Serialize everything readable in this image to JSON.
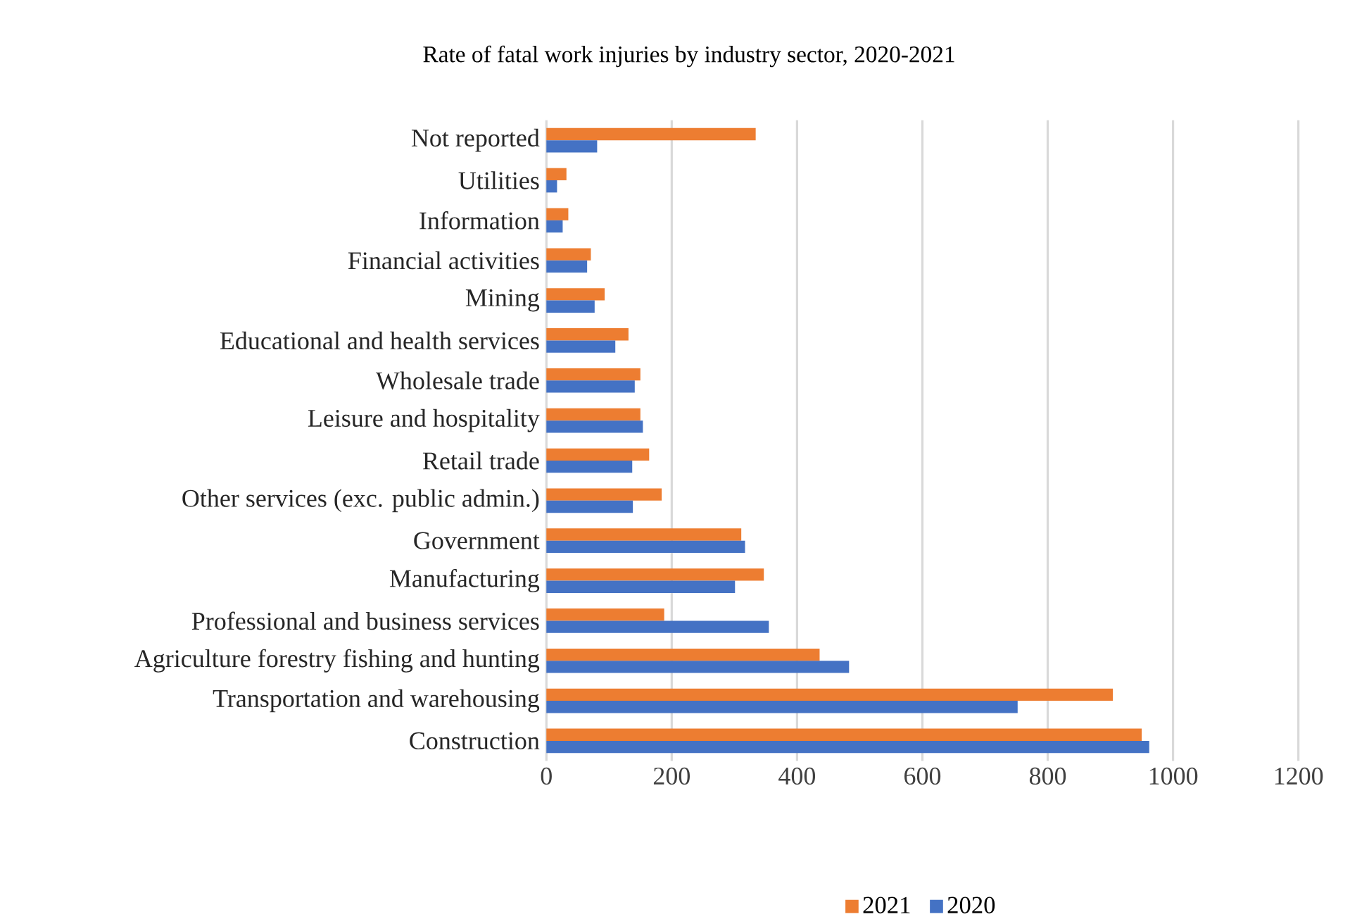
{
  "chart_data": {
    "type": "bar",
    "orientation": "horizontal",
    "title": "Rate of  fatal work injuries by industry sector, 2020-2021",
    "categories": [
      "Not reported",
      "Utilities",
      "Information",
      "Financial activities",
      "Mining",
      "Educational and health services",
      "Wholesale trade",
      "Leisure and hospitality",
      "Retail trade",
      "Other services (exc. public admin.)",
      "Government",
      "Manufacturing",
      "Professional and business services",
      "Agriculture forestry fishing and hunting",
      "Transportation and warehousing",
      "Construction"
    ],
    "series": [
      {
        "name": "2021",
        "color": "#ed7d31",
        "values": [
          334,
          32,
          35,
          71,
          93,
          131,
          150,
          150,
          164,
          184,
          311,
          347,
          188,
          436,
          904,
          950
        ]
      },
      {
        "name": "2020",
        "color": "#4472c4",
        "values": [
          81,
          17,
          26,
          65,
          77,
          110,
          141,
          154,
          137,
          138,
          317,
          301,
          355,
          483,
          752,
          962
        ]
      }
    ],
    "xlim": [
      0,
      1200
    ],
    "xticks": [
      0,
      200,
      400,
      600,
      800,
      1000,
      1200
    ],
    "grid": "x",
    "legend": "bottom"
  }
}
